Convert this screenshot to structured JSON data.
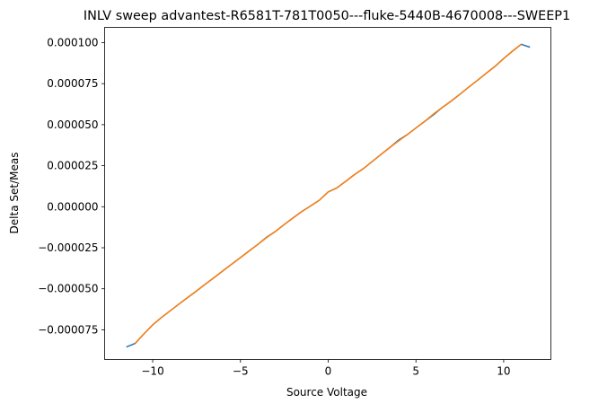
{
  "chart_data": {
    "type": "line",
    "title": "INLV sweep advantest-R6581T-781T0050---fluke-5440B-4670008---SWEEP1",
    "xlabel": "Source Voltage",
    "ylabel": "Delta Set/Meas",
    "xlim": [
      -12.74,
      12.69
    ],
    "ylim": [
      -9.31e-05,
      0.0001093
    ],
    "xticks": [
      -10,
      -5,
      0,
      5,
      10
    ],
    "xtick_labels": [
      "−10",
      "−5",
      "0",
      "5",
      "10"
    ],
    "yticks": [
      -7.5e-05,
      -5e-05,
      -2.5e-05,
      0,
      2.5e-05,
      5e-05,
      7.5e-05,
      0.0001
    ],
    "ytick_labels": [
      "−0.000075",
      "−0.000050",
      "−0.000025",
      "0.000000",
      "0.000025",
      "0.000050",
      "0.000075",
      "0.000100"
    ],
    "grid": false,
    "series": [
      {
        "color": "#1f77b4",
        "x": [
          -11.5,
          -11,
          -10.5,
          -10,
          -9.5,
          -9,
          -8.5,
          -8,
          -7.5,
          -7,
          -6.5,
          -6,
          -5.5,
          -5,
          -4.5,
          -4,
          -3.5,
          -3,
          -2.5,
          -2,
          -1.5,
          -1,
          -0.5,
          0,
          0.5,
          1,
          1.5,
          2,
          2.5,
          3,
          3.5,
          4,
          4.5,
          5,
          5.5,
          6,
          6.5,
          7,
          7.5,
          8,
          8.5,
          9,
          9.5,
          10,
          10.5,
          11,
          11.5
        ],
        "y": [
          -8.55e-05,
          -8.33e-05,
          -7.75e-05,
          -7.2e-05,
          -6.75e-05,
          -6.34e-05,
          -5.93e-05,
          -5.53e-05,
          -5.13e-05,
          -4.72e-05,
          -4.32e-05,
          -3.91e-05,
          -3.5e-05,
          -3.1e-05,
          -2.69e-05,
          -2.29e-05,
          -1.85e-05,
          -1.5e-05,
          -1.08e-05,
          -6.8e-06,
          -2.9e-06,
          5e-07,
          4e-06,
          9e-06,
          1.15e-05,
          1.55e-05,
          1.96e-05,
          2.32e-05,
          2.75e-05,
          3.18e-05,
          3.6e-05,
          4.05e-05,
          4.39e-05,
          4.8e-05,
          5.2e-05,
          5.6e-05,
          6.05e-05,
          6.43e-05,
          6.85e-05,
          7.28e-05,
          7.7e-05,
          8.13e-05,
          8.55e-05,
          9.03e-05,
          9.48e-05,
          9.9e-05,
          9.72e-05
        ]
      },
      {
        "color": "#ff7f0e",
        "x": [
          -11,
          -10.5,
          -10,
          -9.5,
          -9,
          -8.5,
          -8,
          -7.5,
          -7,
          -6.5,
          -6,
          -5.5,
          -5,
          -4.5,
          -4,
          -3.5,
          -3,
          -2.5,
          -2,
          -1.5,
          -1,
          -0.5,
          0,
          0.5,
          1,
          1.5,
          2,
          2.5,
          3,
          3.5,
          4,
          4.5,
          5,
          5.5,
          6,
          6.5,
          7,
          7.5,
          8,
          8.5,
          9,
          9.5,
          10,
          10.5,
          11
        ],
        "y": [
          -8.33e-05,
          -7.75e-05,
          -7.2e-05,
          -6.75e-05,
          -6.34e-05,
          -5.93e-05,
          -5.53e-05,
          -5.13e-05,
          -4.72e-05,
          -4.32e-05,
          -3.91e-05,
          -3.5e-05,
          -3.1e-05,
          -2.69e-05,
          -2.29e-05,
          -1.87e-05,
          -1.5e-05,
          -1.08e-05,
          -6.8e-06,
          -2.9e-06,
          5e-07,
          4e-06,
          9e-06,
          1.15e-05,
          1.55e-05,
          1.96e-05,
          2.32e-05,
          2.75e-05,
          3.18e-05,
          3.6e-05,
          4e-05,
          4.39e-05,
          4.8e-05,
          5.2e-05,
          5.65e-05,
          6.05e-05,
          6.43e-05,
          6.85e-05,
          7.28e-05,
          7.7e-05,
          8.13e-05,
          8.55e-05,
          9.03e-05,
          9.48e-05,
          9.9e-05
        ]
      }
    ]
  }
}
